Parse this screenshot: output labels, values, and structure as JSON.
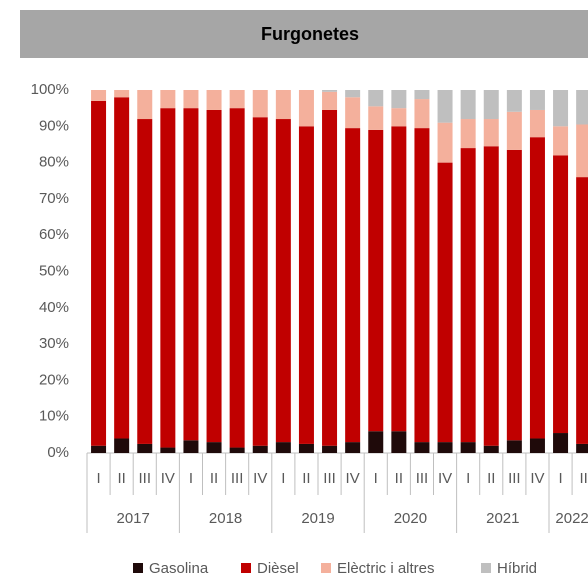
{
  "chart_data": {
    "type": "stacked_bar",
    "title": "Furgonetes",
    "categories": [
      "I",
      "II",
      "III",
      "IV",
      "I",
      "II",
      "III",
      "IV",
      "I",
      "II",
      "III",
      "IV",
      "I",
      "II",
      "III",
      "IV",
      "I",
      "II",
      "III",
      "IV",
      "I",
      "II"
    ],
    "years": [
      "2017",
      "2018",
      "2019",
      "2020",
      "2021",
      "2022"
    ],
    "series": [
      {
        "name": "Gasolina",
        "color": "#1f0a0a",
        "values": [
          2,
          4,
          2.5,
          1.5,
          3.5,
          3,
          1.5,
          2,
          3,
          2.5,
          2,
          3,
          6,
          6,
          3,
          3,
          3,
          2,
          3.5,
          4,
          5.5,
          2.5
        ]
      },
      {
        "name": "Dièsel",
        "color": "#c00000",
        "values": [
          95,
          94,
          89.5,
          93.5,
          91.5,
          91.5,
          93.5,
          90.5,
          89,
          87.5,
          92.5,
          86.5,
          83,
          84,
          86.5,
          77,
          81,
          82.5,
          80,
          83,
          76.5,
          73.5
        ]
      },
      {
        "name": "Elèctric i altres",
        "color": "#f4b09c",
        "values": [
          3,
          2,
          8,
          5,
          5,
          5.5,
          5,
          7.5,
          8,
          10,
          5,
          8.5,
          6.5,
          5,
          8,
          11,
          8,
          7.5,
          10.5,
          7.5,
          8,
          14.5
        ]
      },
      {
        "name": "Híbrid",
        "color": "#bfbfbf",
        "values": [
          0,
          0,
          0,
          0,
          0,
          0,
          0,
          0,
          0,
          0,
          0.5,
          2,
          4.5,
          5,
          2.5,
          9,
          8,
          8,
          6,
          5.5,
          10,
          9.5
        ]
      }
    ],
    "ylim": [
      0,
      100
    ],
    "yticks": [
      {
        "value": 0,
        "label": "0%"
      },
      {
        "value": 10,
        "label": "10%"
      },
      {
        "value": 20,
        "label": "20%"
      },
      {
        "value": 30,
        "label": "30%"
      },
      {
        "value": 40,
        "label": "40%"
      },
      {
        "value": 50,
        "label": "50%"
      },
      {
        "value": 60,
        "label": "60%"
      },
      {
        "value": 70,
        "label": "70%"
      },
      {
        "value": 80,
        "label": "80%"
      },
      {
        "value": 90,
        "label": "90%"
      },
      {
        "value": 100,
        "label": "100%"
      }
    ],
    "grid": false,
    "legend": "bottom"
  }
}
